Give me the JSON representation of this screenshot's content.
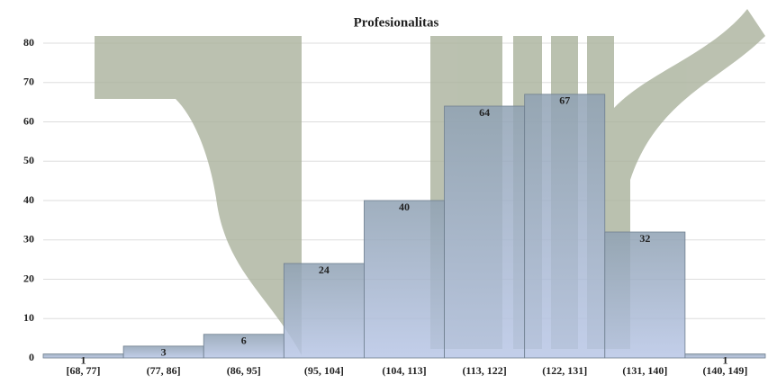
{
  "chart_data": {
    "type": "bar",
    "title": "Profesionalitas",
    "categories": [
      "[68, 77]",
      "(77, 86]",
      "(86, 95]",
      "(95, 104]",
      "(104, 113]",
      "(113, 122]",
      "(122, 131]",
      "(131, 140]",
      "(140, 149]"
    ],
    "values": [
      1,
      3,
      6,
      24,
      40,
      64,
      67,
      32,
      1
    ],
    "color": "#9fb0c8",
    "ylim": [
      0,
      80
    ],
    "yticks": [
      0,
      10,
      20,
      30,
      40,
      50,
      60,
      70,
      80
    ],
    "grid": true
  }
}
